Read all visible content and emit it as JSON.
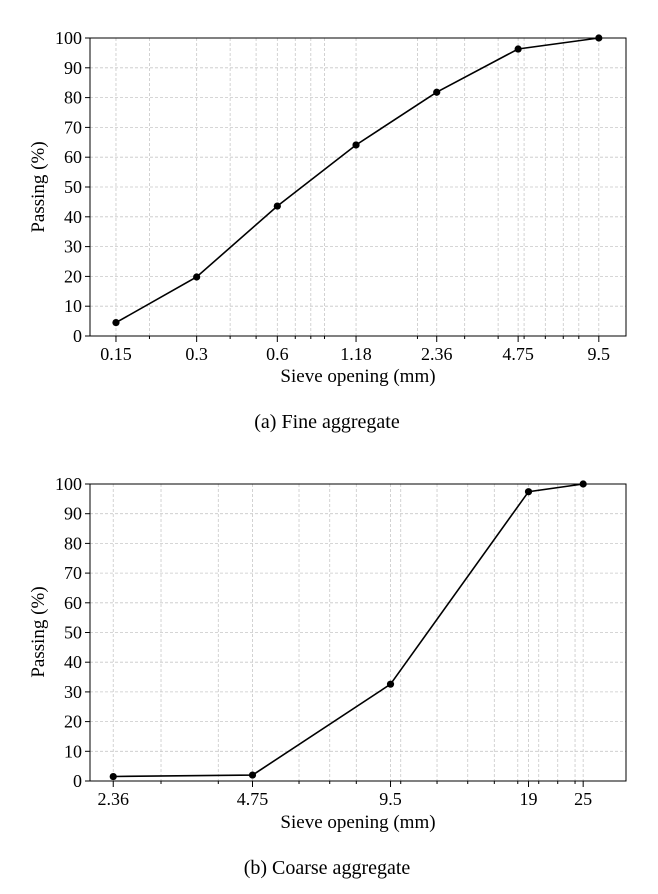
{
  "chart_data": [
    {
      "type": "line",
      "caption": "(a) Fine aggregate",
      "xlabel": "Sieve opening (mm)",
      "ylabel": "Passing (%)",
      "xscale": "log",
      "xlim": [
        0.12,
        12.0
      ],
      "ylim": [
        0,
        100
      ],
      "xticks": [
        0.15,
        0.3,
        0.6,
        1.18,
        2.36,
        4.75,
        9.5
      ],
      "xtick_labels": [
        "0.15",
        "0.3",
        "0.6",
        "1.18",
        "2.36",
        "4.75",
        "9.5"
      ],
      "yticks": [
        0,
        10,
        20,
        30,
        40,
        50,
        60,
        70,
        80,
        90,
        100
      ],
      "ytick_labels": [
        "0",
        "10",
        "20",
        "30",
        "40",
        "50",
        "60",
        "70",
        "80",
        "90",
        "100"
      ],
      "grid": true,
      "series": [
        {
          "x": [
            0.15,
            0.3,
            0.6,
            1.18,
            2.36,
            4.75,
            9.5
          ],
          "values": [
            4.5,
            19.8,
            43.6,
            64.1,
            81.8,
            96.3,
            100
          ]
        }
      ]
    },
    {
      "type": "line",
      "caption": "(b) Coarse aggregate",
      "xlabel": "Sieve opening (mm)",
      "ylabel": "Passing (%)",
      "xscale": "log",
      "xlim": [
        2.1,
        31.0
      ],
      "ylim": [
        0,
        100
      ],
      "xticks": [
        2.36,
        4.75,
        9.5,
        19,
        25
      ],
      "xtick_labels": [
        "2.36",
        "4.75",
        "9.5",
        "19",
        "25"
      ],
      "yticks": [
        0,
        10,
        20,
        30,
        40,
        50,
        60,
        70,
        80,
        90,
        100
      ],
      "ytick_labels": [
        "0",
        "10",
        "20",
        "30",
        "40",
        "50",
        "60",
        "70",
        "80",
        "90",
        "100"
      ],
      "grid": true,
      "series": [
        {
          "x": [
            2.36,
            4.75,
            9.5,
            19,
            25
          ],
          "values": [
            1.5,
            2.0,
            32.6,
            97.4,
            100
          ]
        }
      ]
    }
  ]
}
